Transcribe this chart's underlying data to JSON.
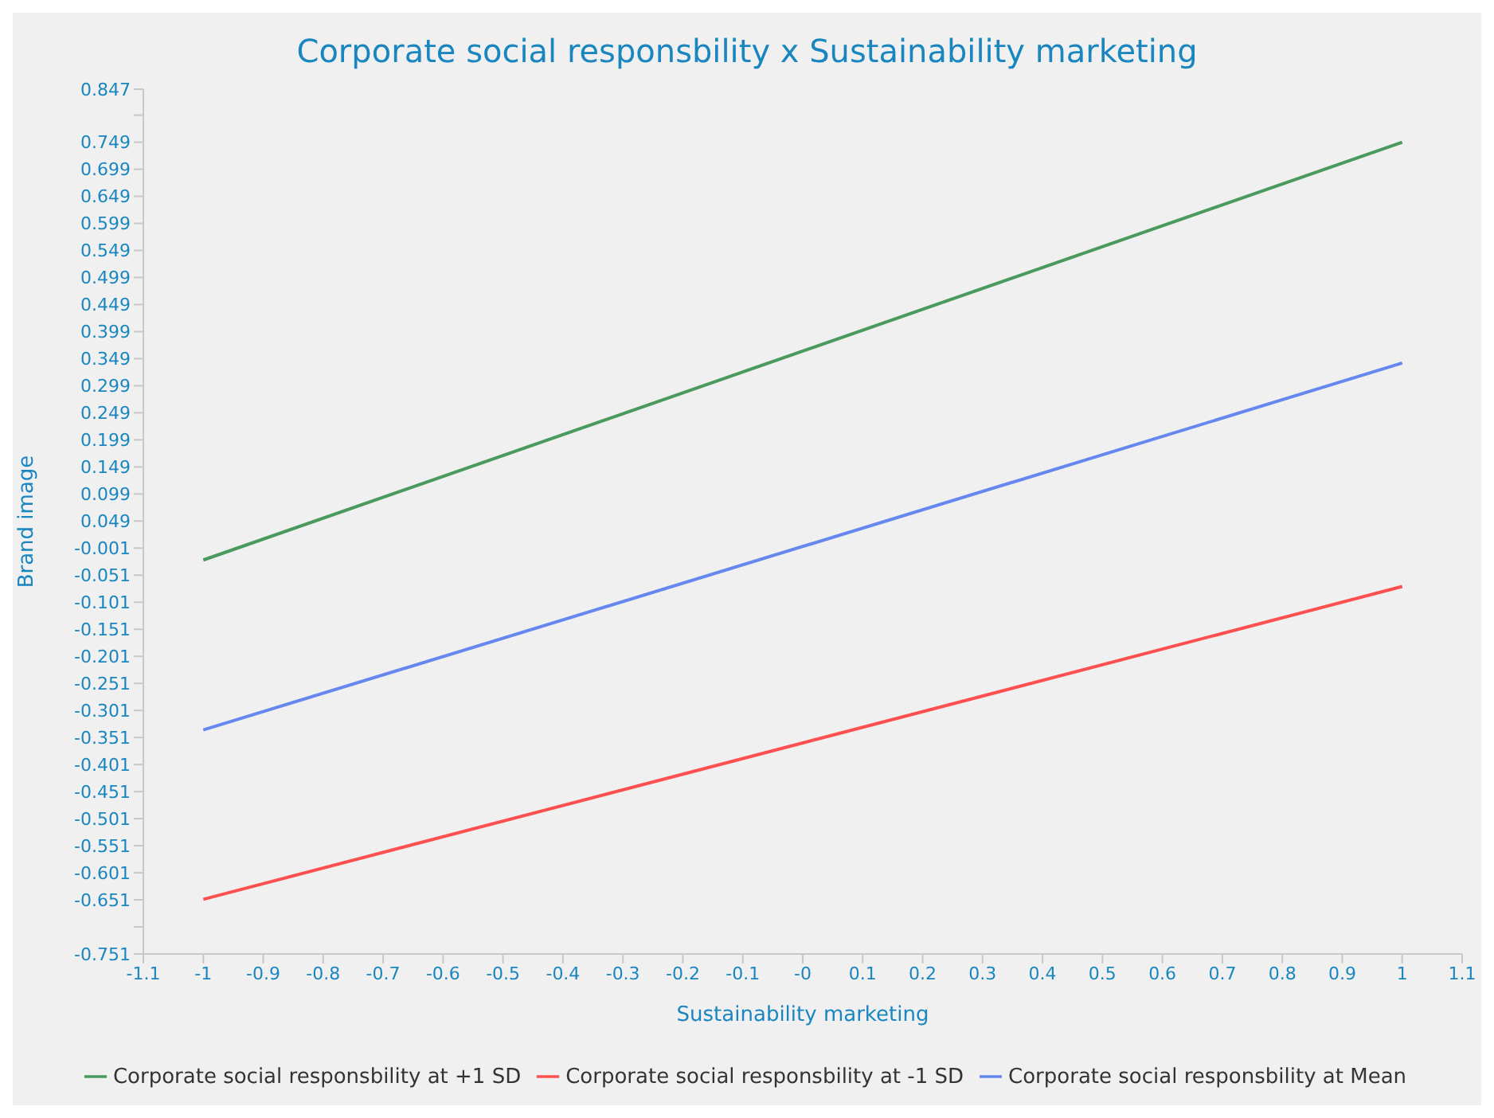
{
  "chart_data": {
    "type": "line",
    "title": "Corporate social responsbility x Sustainability marketing",
    "xlabel": "Sustainability marketing",
    "ylabel": "Brand image",
    "x": [
      -1,
      1
    ],
    "series": [
      {
        "name": "Corporate social responsbility at -1 SD",
        "color": "#ff5050",
        "values": [
          -0.65,
          -0.072
        ]
      },
      {
        "name": "Corporate social responsbility at Mean",
        "color": "#6688ee",
        "values": [
          -0.337,
          0.341
        ]
      },
      {
        "name": "Corporate social responsbility at +1 SD",
        "color": "#4a9a5e",
        "values": [
          -0.023,
          0.749
        ]
      }
    ],
    "xlim": [
      -1.1,
      1.1
    ],
    "xticks": [
      -1.1,
      -1,
      -0.9,
      -0.8,
      -0.7,
      -0.6,
      -0.5,
      -0.4,
      -0.3,
      -0.2,
      -0.1,
      {
        "value": 0,
        "label": "-0"
      },
      0.1,
      0.2,
      0.3,
      0.4,
      0.5,
      0.6,
      0.7,
      0.8,
      0.9,
      1,
      1.1
    ],
    "ylim": [
      -0.751,
      0.847
    ],
    "yticks": [
      -0.751,
      {
        "value": -0.701,
        "label": null
      },
      -0.651,
      -0.601,
      -0.551,
      -0.501,
      -0.451,
      -0.401,
      -0.351,
      -0.301,
      -0.251,
      -0.201,
      -0.151,
      -0.101,
      -0.051,
      -0.001,
      0.049,
      0.099,
      0.149,
      0.199,
      0.249,
      0.299,
      0.349,
      0.399,
      0.449,
      0.499,
      0.549,
      0.599,
      0.649,
      0.699,
      0.749,
      {
        "value": 0.799,
        "label": null
      },
      0.847
    ],
    "legend": "bottom",
    "marker": "none",
    "line_style": "solid",
    "grid": false
  }
}
